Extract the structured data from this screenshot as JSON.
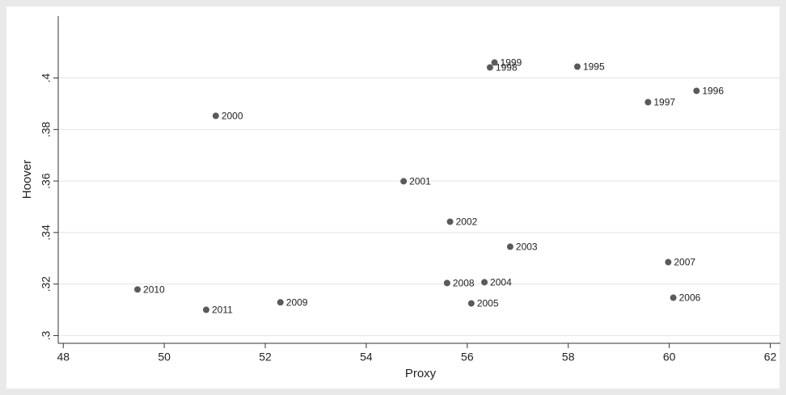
{
  "chart_data": {
    "type": "scatter",
    "xlabel": "Proxy",
    "ylabel": "Hoover",
    "labels": [
      "1995",
      "1996",
      "1997",
      "1998",
      "1999",
      "2000",
      "2001",
      "2002",
      "2003",
      "2004",
      "2005",
      "2006",
      "2007",
      "2008",
      "2009",
      "2010",
      "2011"
    ],
    "x": [
      58.18,
      60.54,
      59.58,
      56.45,
      56.54,
      51.02,
      54.74,
      55.66,
      56.85,
      56.34,
      56.08,
      60.08,
      59.98,
      55.6,
      52.3,
      49.47,
      50.83
    ],
    "series": [
      {
        "name": "Hoover",
        "color": "#5a5a5a",
        "values": [
          0.4044,
          0.395,
          0.3906,
          0.4041,
          0.406,
          0.3853,
          0.3599,
          0.3442,
          0.3345,
          0.3207,
          0.3125,
          0.3147,
          0.3285,
          0.3204,
          0.3129,
          0.3179,
          0.31
        ]
      }
    ],
    "xlim": [
      47.9,
      62.2
    ],
    "xticks": [
      48,
      50,
      52,
      54,
      56,
      58,
      60,
      62
    ],
    "ylim": [
      0.297,
      0.424
    ],
    "yticks": [
      {
        "value": 0.3,
        "label": ".3"
      },
      {
        "value": 0.32,
        "label": ".32"
      },
      {
        "value": 0.34,
        "label": ".34"
      },
      {
        "value": 0.36,
        "label": ".36"
      },
      {
        "value": 0.38,
        "label": ".38"
      },
      {
        "value": 0.4,
        "label": ".4"
      }
    ],
    "grid": true
  }
}
